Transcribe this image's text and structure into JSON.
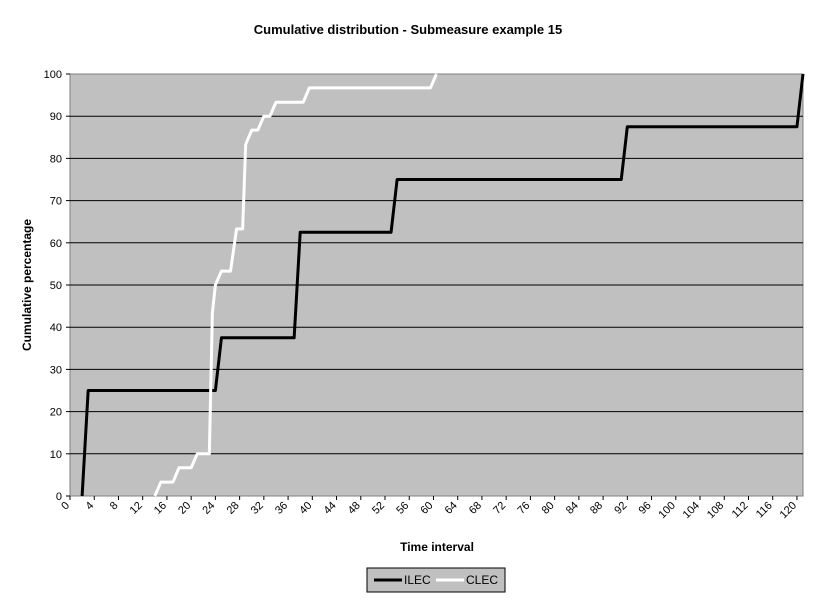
{
  "chart_data": {
    "type": "line",
    "title": "Cumulative distribution - Submeasure example 15",
    "xlabel": "Time interval",
    "ylabel": "Cumulative percentage",
    "xlim": [
      0,
      121
    ],
    "ylim": [
      0,
      100
    ],
    "grid": true,
    "legend_position": "bottom",
    "x_ticks": [
      "0",
      "4",
      "8",
      "12",
      "16",
      "20",
      "24",
      "28",
      "32",
      "36",
      "40",
      "44",
      "48",
      "52",
      "56",
      "60",
      "64",
      "68",
      "72",
      "76",
      "80",
      "84",
      "88",
      "92",
      "96",
      "100",
      "104",
      "108",
      "112",
      "116",
      "120"
    ],
    "y_ticks": [
      "0",
      "10",
      "20",
      "30",
      "40",
      "50",
      "60",
      "70",
      "80",
      "90",
      "100"
    ],
    "colors": {
      "plot_background": "#c0c0c0",
      "ILEC": "#000000",
      "CLEC": "#ffffff"
    },
    "series": [
      {
        "name": "ILEC",
        "points": [
          [
            2,
            0
          ],
          [
            3,
            25
          ],
          [
            24,
            25
          ],
          [
            25,
            37.5
          ],
          [
            37,
            37.5
          ],
          [
            38,
            62.5
          ],
          [
            53,
            62.5
          ],
          [
            54,
            75
          ],
          [
            91,
            75
          ],
          [
            92,
            87.5
          ],
          [
            120,
            87.5
          ],
          [
            121,
            100
          ]
        ]
      },
      {
        "name": "CLEC",
        "points": [
          [
            14,
            0
          ],
          [
            15,
            3.3
          ],
          [
            17,
            3.3
          ],
          [
            18,
            6.7
          ],
          [
            20,
            6.7
          ],
          [
            21,
            10
          ],
          [
            23,
            10
          ],
          [
            23.5,
            43.3
          ],
          [
            24,
            50
          ],
          [
            25,
            53.3
          ],
          [
            26.5,
            53.3
          ],
          [
            27.5,
            63.3
          ],
          [
            28.5,
            63.3
          ],
          [
            29,
            83.3
          ],
          [
            30,
            86.7
          ],
          [
            31,
            86.7
          ],
          [
            32,
            90
          ],
          [
            33,
            90
          ],
          [
            34,
            93.3
          ],
          [
            38.5,
            93.3
          ],
          [
            39.5,
            96.7
          ],
          [
            59.5,
            96.7
          ],
          [
            60.5,
            100
          ]
        ]
      }
    ]
  }
}
